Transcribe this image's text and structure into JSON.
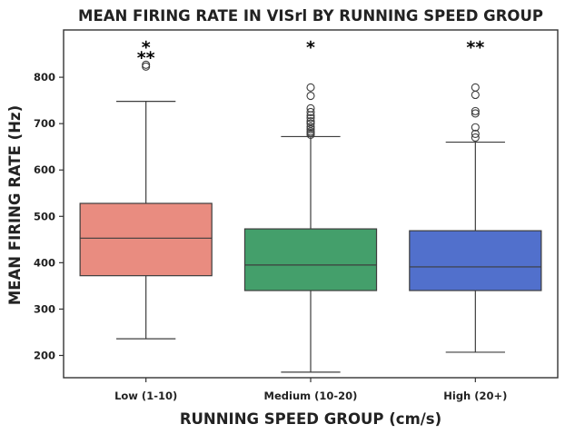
{
  "chart_data": {
    "type": "box",
    "title": "MEAN FIRING RATE IN VISrl BY RUNNING SPEED GROUP",
    "xlabel": "RUNNING SPEED GROUP (cm/s)",
    "ylabel": "MEAN FIRING RATE (Hz)",
    "ylim": [
      152,
      902
    ],
    "yticks": [
      200,
      300,
      400,
      500,
      600,
      700,
      800
    ],
    "grid": false,
    "categories": [
      "Low (1-10)",
      "Medium (10-20)",
      "High (20+)"
    ],
    "boxes": [
      {
        "category": "Low (1-10)",
        "color": "#e98c80",
        "whisker_low": 236,
        "q1": 372,
        "median": 453,
        "q3": 528,
        "whisker_high": 748,
        "outliers": [
          823,
          827
        ]
      },
      {
        "category": "Medium (10-20)",
        "color": "#449f6b",
        "whisker_low": 164,
        "q1": 340,
        "median": 395,
        "q3": 473,
        "whisker_high": 672,
        "outliers": [
          676,
          680,
          683,
          688,
          693,
          700,
          705,
          712,
          718,
          725,
          733,
          760,
          778
        ]
      },
      {
        "category": "High (20+)",
        "color": "#5170cc",
        "whisker_low": 207,
        "q1": 340,
        "median": 391,
        "q3": 469,
        "whisker_high": 660,
        "outliers": [
          670,
          678,
          692,
          722,
          727,
          762,
          778
        ]
      }
    ],
    "annotations": [
      {
        "category": "Low (1-10)",
        "text": "*",
        "y": 876
      },
      {
        "category": "Low (1-10)",
        "text": "**",
        "y": 853
      },
      {
        "category": "Medium (10-20)",
        "text": "*",
        "y": 876
      },
      {
        "category": "High (20+)",
        "text": "**",
        "y": 876
      }
    ]
  }
}
